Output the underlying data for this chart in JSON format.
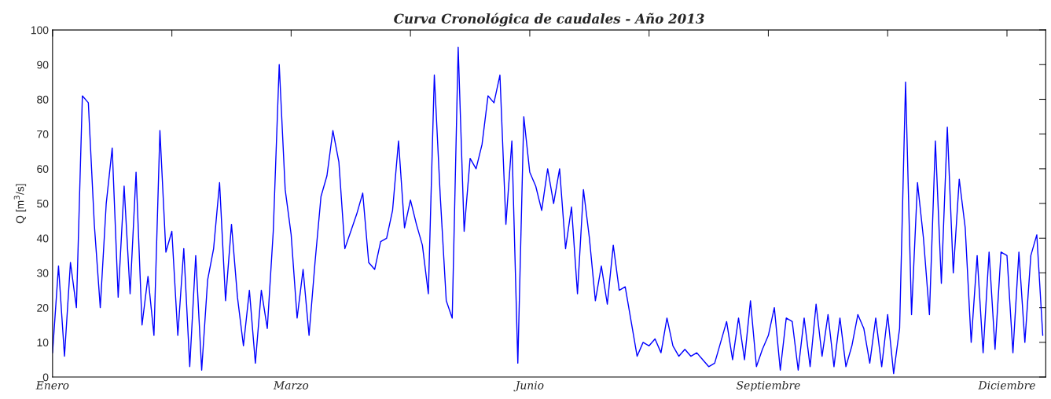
{
  "chart_data": {
    "type": "line",
    "title": "Curva Cronológica de caudales - Año 2013",
    "ylabel": "Q [m$^{3}$/s]",
    "ylim": [
      0,
      100
    ],
    "yticks": [
      0,
      10,
      20,
      30,
      40,
      50,
      60,
      70,
      80,
      90,
      100
    ],
    "categories": [
      "Enero",
      null,
      null,
      null,
      null,
      null,
      null,
      null,
      null,
      null,
      null,
      null,
      null,
      null,
      null,
      null,
      null,
      null,
      null,
      null,
      null,
      null,
      null,
      null,
      null,
      null,
      null,
      null,
      null,
      null,
      null,
      null,
      null,
      null,
      null,
      null,
      null,
      null,
      null,
      null,
      "Marzo",
      null,
      null,
      null,
      null,
      null,
      null,
      null,
      null,
      null,
      null,
      null,
      null,
      null,
      null,
      null,
      null,
      null,
      null,
      null,
      null,
      null,
      null,
      null,
      null,
      null,
      null,
      null,
      null,
      null,
      null,
      null,
      null,
      null,
      null,
      null,
      null,
      null,
      null,
      null,
      "Junio",
      null,
      null,
      null,
      null,
      null,
      null,
      null,
      null,
      null,
      null,
      null,
      null,
      null,
      null,
      null,
      null,
      null,
      null,
      null,
      null,
      null,
      null,
      null,
      null,
      null,
      null,
      null,
      null,
      null,
      null,
      null,
      null,
      null,
      null,
      null,
      null,
      null,
      null,
      null,
      "Septiembre",
      null,
      null,
      null,
      null,
      null,
      null,
      null,
      null,
      null,
      null,
      null,
      null,
      null,
      null,
      null,
      null,
      null,
      null,
      null,
      null,
      null,
      null,
      null,
      null,
      null,
      null,
      null,
      null,
      null,
      null,
      null,
      null,
      null,
      null,
      null,
      null,
      null,
      null,
      null,
      "Diciembre",
      null,
      null,
      null,
      null,
      null,
      null
    ],
    "grid": false,
    "legend": false,
    "marker": "none",
    "line_style": "solid",
    "series": [
      {
        "color": "#0000ff",
        "values": [
          7,
          32,
          6,
          33,
          20,
          81,
          79,
          44,
          20,
          50,
          66,
          23,
          55,
          24,
          59,
          15,
          29,
          12,
          71,
          36,
          42,
          12,
          37,
          3,
          35,
          2,
          28,
          37,
          56,
          22,
          44,
          23,
          9,
          25,
          4,
          25,
          14,
          42,
          90,
          54,
          41,
          17,
          31,
          12,
          33,
          52,
          58,
          71,
          62,
          37,
          42,
          47,
          53,
          33,
          31,
          39,
          40,
          48,
          68,
          43,
          51,
          44,
          38,
          24,
          87,
          52,
          22,
          17,
          95,
          42,
          63,
          60,
          67,
          81,
          79,
          87,
          44,
          68,
          4,
          75,
          59,
          55,
          48,
          60,
          50,
          60,
          37,
          49,
          24,
          54,
          40,
          22,
          32,
          21,
          38,
          25,
          26,
          16,
          6,
          10,
          9,
          11,
          7,
          17,
          9,
          6,
          8,
          6,
          7,
          5,
          3,
          4,
          10,
          16,
          5,
          17,
          5,
          22,
          3,
          8,
          12,
          20,
          2,
          17,
          16,
          2,
          17,
          3,
          21,
          6,
          18,
          3,
          17,
          3,
          9,
          18,
          14,
          4,
          17,
          3,
          18,
          1,
          14,
          85,
          18,
          56,
          40,
          18,
          68,
          27,
          72,
          30,
          57,
          43,
          10,
          35,
          7,
          36,
          8,
          36,
          35,
          7,
          36,
          10,
          35,
          41,
          12
        ]
      }
    ]
  }
}
